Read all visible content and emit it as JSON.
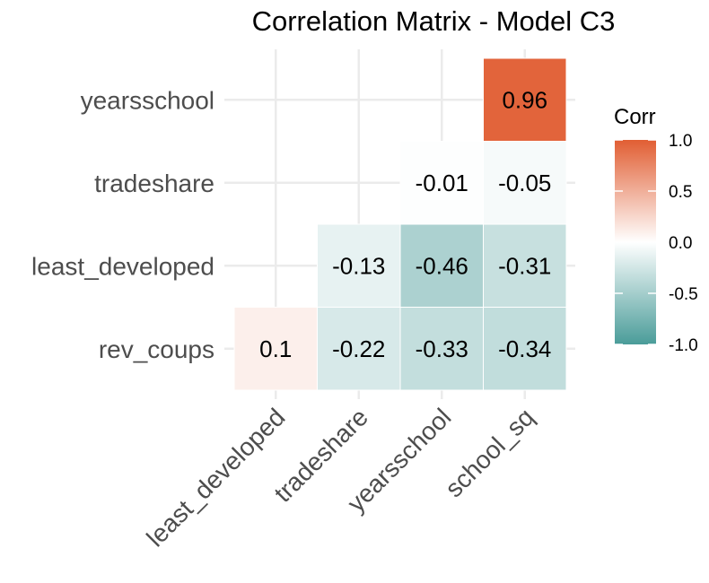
{
  "chart_data": {
    "type": "heatmap",
    "title": "Correlation Matrix - Model C3",
    "x_categories": [
      "least_developed",
      "tradeshare",
      "yearsschool",
      "school_sq"
    ],
    "y_categories": [
      "rev_coups",
      "least_developed",
      "tradeshare",
      "yearsschool"
    ],
    "cells": [
      {
        "x": "least_developed",
        "y": "rev_coups",
        "value": 0.1,
        "label": "0.1"
      },
      {
        "x": "tradeshare",
        "y": "rev_coups",
        "value": -0.22,
        "label": "-0.22"
      },
      {
        "x": "yearsschool",
        "y": "rev_coups",
        "value": -0.33,
        "label": "-0.33"
      },
      {
        "x": "school_sq",
        "y": "rev_coups",
        "value": -0.34,
        "label": "-0.34"
      },
      {
        "x": "tradeshare",
        "y": "least_developed",
        "value": -0.13,
        "label": "-0.13"
      },
      {
        "x": "yearsschool",
        "y": "least_developed",
        "value": -0.46,
        "label": "-0.46"
      },
      {
        "x": "school_sq",
        "y": "least_developed",
        "value": -0.31,
        "label": "-0.31"
      },
      {
        "x": "yearsschool",
        "y": "tradeshare",
        "value": -0.01,
        "label": "-0.01"
      },
      {
        "x": "school_sq",
        "y": "tradeshare",
        "value": -0.05,
        "label": "-0.05"
      },
      {
        "x": "school_sq",
        "y": "yearsschool",
        "value": 0.96,
        "label": "0.96"
      }
    ],
    "legend": {
      "title": "Corr",
      "ticks": [
        "1.0",
        "0.5",
        "0.0",
        "-0.5",
        "-1.0"
      ],
      "tick_values": [
        1.0,
        0.5,
        0.0,
        -0.5,
        -1.0
      ],
      "range": [
        -1,
        1
      ],
      "placement": "right"
    },
    "colors": {
      "low": "#4a9c99",
      "mid": "#ffffff",
      "high": "#e15e33",
      "grid": "#ebebeb"
    },
    "grid": true
  }
}
